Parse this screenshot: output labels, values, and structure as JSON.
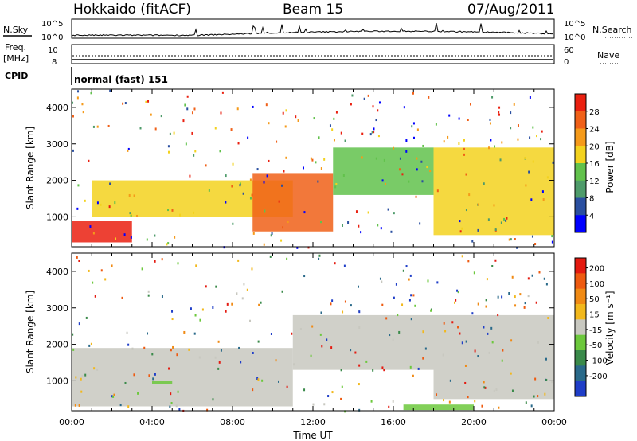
{
  "header": {
    "station": "Hokkaido (fitACF)",
    "beam": "Beam 15",
    "date": "07/Aug/2011"
  },
  "top_panels": {
    "nsky_label": "N.Sky",
    "nsearch_label": "N.Search",
    "noise_ticks": [
      "10^5",
      "10^0"
    ],
    "freq_label": "Freq.",
    "freq_unit": "[MHz]",
    "freq_ticks": [
      "10",
      "8"
    ],
    "nave_label": "Nave",
    "nave_ticks": [
      "60",
      "0"
    ],
    "cpid_label": "CPID",
    "cpid_value": "normal (fast) 151"
  },
  "colors": {
    "power": [
      "#0000ff",
      "#2a4fa0",
      "#4e9b6a",
      "#62c24c",
      "#f3d21e",
      "#f59a1a",
      "#f06018",
      "#ea2010"
    ],
    "velocity": [
      "#1f3ec8",
      "#2a6a8a",
      "#3a8a4a",
      "#6cc83c",
      "#c8c8c0",
      "#f2b81c",
      "#f08a14",
      "#ee5a10",
      "#e41a10"
    ]
  },
  "chart_data": [
    {
      "type": "heatmap",
      "panel": "power",
      "ylabel": "Slant Range [km]",
      "xlabel": "",
      "xlim": [
        "00:00",
        "24:00"
      ],
      "ylim": [
        180,
        4500
      ],
      "yticks": [
        "1000",
        "2000",
        "3000",
        "4000"
      ],
      "colorbar": {
        "label": "Power [dB]",
        "ticks": [
          "28",
          "24",
          "20",
          "16",
          "12",
          "8",
          "4"
        ],
        "range": [
          0,
          30
        ]
      },
      "features": [
        {
          "x_start": "00:00",
          "x_end": "03:00",
          "range_km": [
            300,
            900
          ],
          "value_db": 28
        },
        {
          "x_start": "01:00",
          "x_end": "11:00",
          "range_km": [
            1000,
            2000
          ],
          "value_db": 18
        },
        {
          "x_start": "09:00",
          "x_end": "13:00",
          "range_km": [
            600,
            2200
          ],
          "value_db": 26
        },
        {
          "x_start": "13:00",
          "x_end": "18:00",
          "range_km": [
            1600,
            2900
          ],
          "value_db": 14
        },
        {
          "x_start": "18:00",
          "x_end": "24:00",
          "range_km": [
            500,
            2900
          ],
          "value_db": 18
        }
      ]
    },
    {
      "type": "heatmap",
      "panel": "velocity",
      "ylabel": "Slant Range [km]",
      "xlabel": "Time UT",
      "xlim": [
        "00:00",
        "24:00"
      ],
      "ylim": [
        180,
        4500
      ],
      "yticks": [
        "1000",
        "2000",
        "3000",
        "4000"
      ],
      "xticks": [
        "00:00",
        "04:00",
        "08:00",
        "12:00",
        "16:00",
        "20:00",
        "00:00"
      ],
      "colorbar": {
        "label": "Velocity [m s⁻¹]",
        "ticks": [
          "200",
          "100",
          "50",
          "15",
          "-15",
          "-50",
          "-100",
          "-200"
        ],
        "range": [
          -250,
          250
        ]
      },
      "features": [
        {
          "x_start": "00:00",
          "x_end": "11:00",
          "range_km": [
            300,
            1900
          ],
          "velocity_ms": 0
        },
        {
          "x_start": "11:00",
          "x_end": "18:00",
          "range_km": [
            1300,
            2800
          ],
          "velocity_ms": 0
        },
        {
          "x_start": "18:00",
          "x_end": "24:00",
          "range_km": [
            500,
            2800
          ],
          "velocity_ms": 0
        },
        {
          "x_start": "04:00",
          "x_end": "05:00",
          "range_km": [
            900,
            1000
          ],
          "velocity_ms": 40
        },
        {
          "x_start": "16:30",
          "x_end": "20:00",
          "range_km": [
            200,
            350
          ],
          "velocity_ms": 40
        }
      ]
    }
  ]
}
